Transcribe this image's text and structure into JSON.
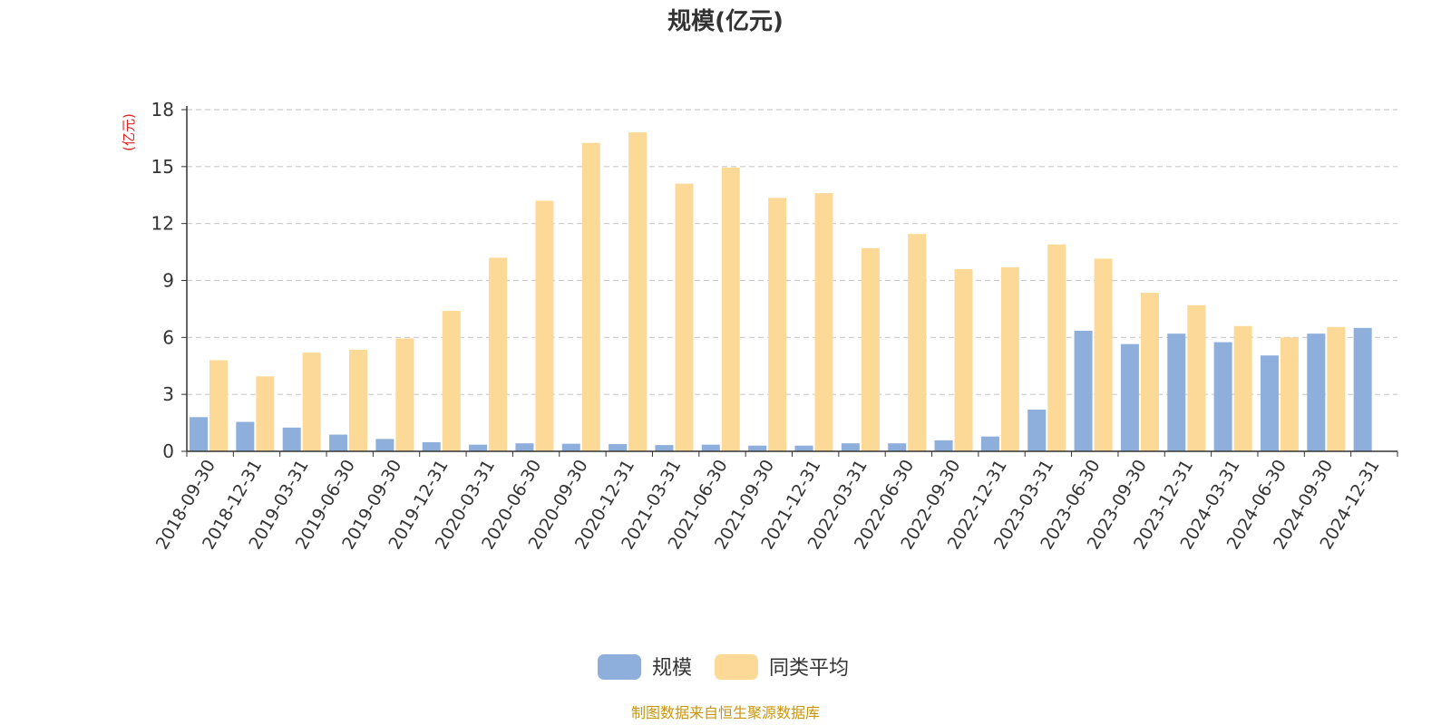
{
  "chart_data": {
    "type": "bar",
    "title": "规模(亿元)",
    "ylabel": "(亿元)",
    "ylim": [
      0,
      18
    ],
    "yticks": [
      0,
      3,
      6,
      9,
      12,
      15,
      18
    ],
    "grid": true,
    "legend_position": "bottom",
    "categories": [
      "2018-09-30",
      "2018-12-31",
      "2019-03-31",
      "2019-06-30",
      "2019-09-30",
      "2019-12-31",
      "2020-03-31",
      "2020-06-30",
      "2020-09-30",
      "2020-12-31",
      "2021-03-31",
      "2021-06-30",
      "2021-09-30",
      "2021-12-31",
      "2022-03-31",
      "2022-06-30",
      "2022-09-30",
      "2022-12-31",
      "2023-03-31",
      "2023-06-30",
      "2023-09-30",
      "2023-12-31",
      "2024-03-31",
      "2024-06-30",
      "2024-09-30",
      "2024-12-31"
    ],
    "series": [
      {
        "name": "规模",
        "color": "#8eaedb",
        "values": [
          1.8,
          1.55,
          1.25,
          0.88,
          0.65,
          0.48,
          0.35,
          0.42,
          0.4,
          0.38,
          0.33,
          0.35,
          0.3,
          0.3,
          0.42,
          0.42,
          0.58,
          0.78,
          2.2,
          6.35,
          5.65,
          6.2,
          5.75,
          5.05,
          6.2,
          6.5
        ]
      },
      {
        "name": "同类平均",
        "color": "#fdd998",
        "values": [
          4.8,
          3.95,
          5.2,
          5.35,
          5.95,
          7.4,
          10.2,
          13.2,
          16.25,
          16.8,
          14.1,
          14.95,
          13.35,
          13.6,
          10.7,
          11.45,
          9.6,
          9.7,
          10.9,
          10.15,
          8.35,
          7.7,
          6.6,
          6.0,
          6.55,
          null
        ]
      }
    ],
    "source_note": "制图数据来自恒生聚源数据库"
  }
}
